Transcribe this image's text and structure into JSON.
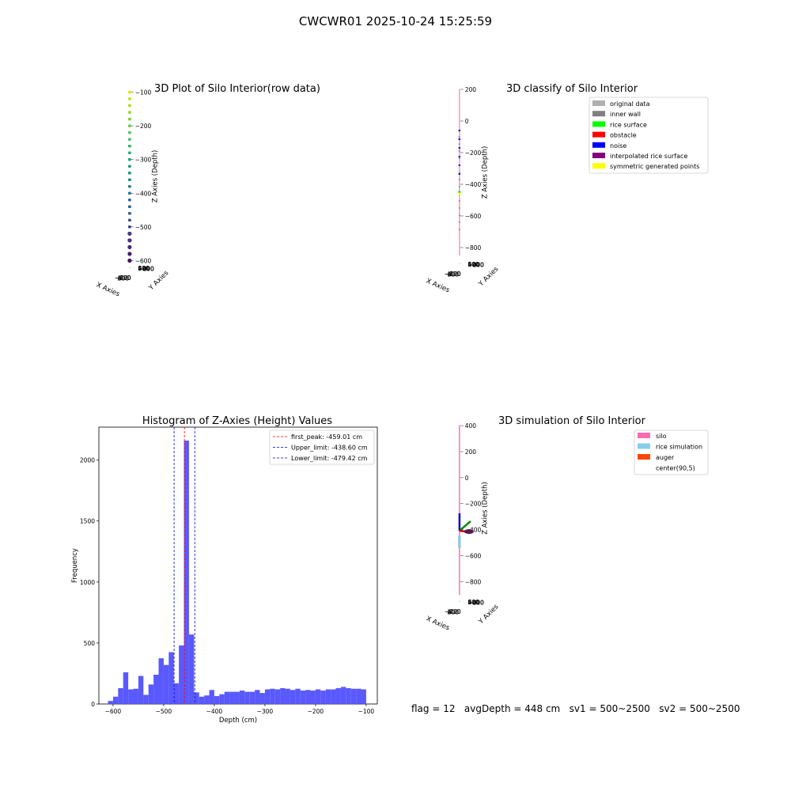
{
  "figure": {
    "title": "CWCWR01 2025-10-24 15:25:59",
    "footer": "flag = 12   avgDepth = 448 cm   sv1 = 500~2500   sv2 = 500~2500"
  },
  "chart_data": [
    {
      "type": "scatter",
      "title": "3D Plot of Silo Interior(row data)",
      "xlabel": "X Axies",
      "ylabel": "Y Axies",
      "zlabel": "Z Axies (Depth)",
      "x_ticks": [
        -600,
        -400,
        -200,
        0,
        200,
        400,
        600
      ],
      "y_ticks": [
        -600,
        -400,
        -200,
        0,
        200,
        400,
        600
      ],
      "z_ticks": [
        -100,
        -200,
        -300,
        -400,
        -500,
        -600
      ],
      "zlim": [
        -620,
        -80
      ],
      "colormap": "viridis",
      "radius": 430,
      "grid": true
    },
    {
      "type": "scatter",
      "title": "3D classify of Silo Interior",
      "xlabel": "X Axies",
      "ylabel": "Y Axies",
      "zlabel": "Z Axies (Depth)",
      "x_ticks": [
        -600,
        -400,
        -200,
        0,
        200,
        400,
        600
      ],
      "y_ticks": [
        -600,
        -400,
        -200,
        0,
        200,
        400,
        600
      ],
      "z_ticks": [
        200,
        0,
        -200,
        -400,
        -600,
        -800
      ],
      "zlim": [
        -900,
        250
      ],
      "legend_position": "top-right",
      "legend": [
        {
          "label": "original data",
          "color": "#b0b0b0"
        },
        {
          "label": "inner wall",
          "color": "#808080"
        },
        {
          "label": "rice surface",
          "color": "#00ff00"
        },
        {
          "label": "obstacle",
          "color": "#ff0000"
        },
        {
          "label": "noise",
          "color": "#0000ff"
        },
        {
          "label": "interpolated rice surface",
          "color": "#800080"
        },
        {
          "label": "symmetric generated points",
          "color": "#ffff00"
        }
      ],
      "grid": true
    },
    {
      "type": "bar",
      "title": "Histogram of Z-Axies (Height) Values",
      "xlabel": "Depth (cm)",
      "ylabel": "Frequency",
      "xlim": [
        -628,
        -78
      ],
      "ylim": [
        0,
        2270
      ],
      "x_ticks": [
        -600,
        -500,
        -400,
        -300,
        -200,
        -100
      ],
      "y_ticks": [
        0,
        500,
        1000,
        1500,
        2000
      ],
      "bin_width": 10,
      "bar_color": "#5050ff",
      "bins_start": [
        -610,
        -600,
        -590,
        -580,
        -570,
        -560,
        -550,
        -540,
        -530,
        -520,
        -510,
        -500,
        -490,
        -480,
        -470,
        -460,
        -450,
        -440,
        -430,
        -420,
        -410,
        -400,
        -390,
        -380,
        -370,
        -360,
        -350,
        -340,
        -330,
        -320,
        -310,
        -300,
        -290,
        -280,
        -270,
        -260,
        -250,
        -240,
        -230,
        -220,
        -210,
        -200,
        -190,
        -180,
        -170,
        -160,
        -150,
        -140,
        -130,
        -120,
        -110
      ],
      "values": [
        25,
        60,
        130,
        260,
        120,
        125,
        230,
        75,
        160,
        240,
        375,
        320,
        425,
        170,
        480,
        2160,
        570,
        95,
        60,
        70,
        115,
        65,
        80,
        100,
        100,
        100,
        110,
        100,
        100,
        115,
        90,
        120,
        125,
        120,
        130,
        125,
        115,
        125,
        110,
        115,
        110,
        120,
        110,
        120,
        120,
        130,
        140,
        130,
        125,
        125,
        120
      ],
      "vlines": [
        {
          "label": "first_peak: -459.01 cm",
          "x": -459.01,
          "color": "#ff0000"
        },
        {
          "label": "Upper_limit: -438.60 cm",
          "x": -438.6,
          "color": "#0000cc"
        },
        {
          "label": "Lower_limit: -479.42 cm",
          "x": -479.42,
          "color": "#0000cc"
        }
      ],
      "legend_position": "top-right"
    },
    {
      "type": "scatter",
      "title": "3D simulation of Silo Interior",
      "xlabel": "X Axies",
      "ylabel": "Y Axies",
      "zlabel": "Z Axies (Depth)",
      "x_ticks": [
        -400,
        -200,
        0,
        200,
        400,
        600
      ],
      "y_ticks": [
        -600,
        -400,
        -200,
        0,
        200,
        400,
        600
      ],
      "z_ticks": [
        400,
        200,
        0,
        -200,
        -400,
        -600,
        -800
      ],
      "zlim": [
        -950,
        480
      ],
      "legend_position": "top-right",
      "legend": [
        {
          "label": "silo",
          "color": "#ff69b4"
        },
        {
          "label": "rice simulation",
          "color": "#87ceeb"
        },
        {
          "label": "auger",
          "color": "#ff4500"
        },
        {
          "label": "center(90,5)",
          "color": "#ffffff"
        }
      ],
      "silo_top": 400,
      "silo_bottom": -900,
      "rice_level": -448,
      "grid": true
    }
  ]
}
